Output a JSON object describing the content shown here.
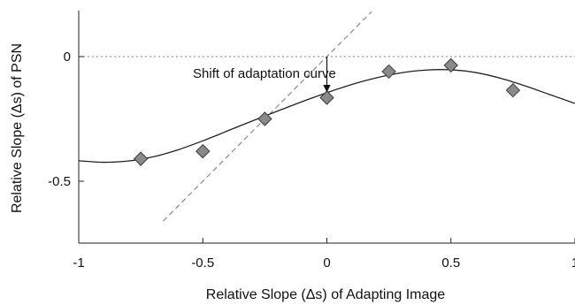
{
  "chart_data": {
    "type": "scatter",
    "xlabel": "Relative Slope (Δs) of Adapting Image",
    "ylabel": "Relative Slope (Δs) of PSN",
    "xlim": [
      -1,
      1
    ],
    "ylim": [
      -0.75,
      0.18
    ],
    "x_ticks": [
      -1,
      -0.5,
      0,
      0.5,
      1
    ],
    "x_tick_labels": [
      "-1",
      "-0.5",
      "0",
      "0.5",
      "1"
    ],
    "y_ticks": [
      0,
      -0.5
    ],
    "y_tick_labels": [
      "0",
      "-0.5"
    ],
    "grid": false,
    "series": [
      {
        "kind": "points",
        "marker": "diamond",
        "x": [
          -0.75,
          -0.5,
          -0.25,
          0,
          0.25,
          0.5,
          0.75
        ],
        "y": [
          -0.41,
          -0.38,
          -0.25,
          -0.165,
          -0.06,
          -0.035,
          -0.135
        ]
      },
      {
        "kind": "fit-curve",
        "x": [
          -1,
          -0.9,
          -0.8,
          -0.7,
          -0.6,
          -0.5,
          -0.4,
          -0.3,
          -0.2,
          -0.1,
          0,
          0.1,
          0.2,
          0.3,
          0.4,
          0.5,
          0.6,
          0.7,
          0.8,
          0.9,
          1
        ],
        "y": [
          -0.418,
          -0.424,
          -0.419,
          -0.402,
          -0.374,
          -0.338,
          -0.298,
          -0.258,
          -0.219,
          -0.181,
          -0.145,
          -0.112,
          -0.085,
          -0.065,
          -0.054,
          -0.053,
          -0.064,
          -0.087,
          -0.118,
          -0.153,
          -0.188
        ]
      },
      {
        "kind": "identity-line",
        "style": "dashed",
        "x": [
          -0.66,
          0.18
        ],
        "y": [
          -0.66,
          0.18
        ]
      },
      {
        "kind": "reference-line",
        "style": "dotted",
        "x": [
          -1,
          1
        ],
        "y": [
          0,
          0
        ]
      }
    ],
    "annotations": [
      {
        "text": "Shift of adaptation curve",
        "text_x": -0.54,
        "text_y": -0.085,
        "arrow_from": [
          0,
          0
        ],
        "arrow_to": [
          0,
          -0.14
        ]
      }
    ],
    "colors": {
      "marker_fill": "#8a8a8a",
      "marker_edge": "#3a3a3a",
      "curve": "#222222",
      "dashed": "#888888",
      "dotted": "#999999"
    }
  }
}
